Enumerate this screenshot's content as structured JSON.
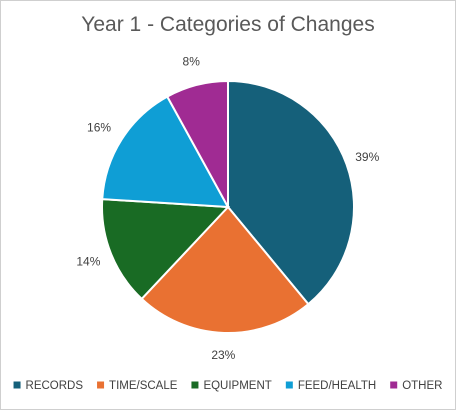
{
  "chart_data": {
    "type": "pie",
    "title": "Year 1 - Categories of Changes",
    "categories": [
      "RECORDS",
      "TIME/SCALE",
      "EQUIPMENT",
      "FEED/HEALTH",
      "OTHER"
    ],
    "values": [
      39,
      23,
      14,
      16,
      8
    ],
    "labels": [
      "39%",
      "23%",
      "14%",
      "16%",
      "8%"
    ],
    "colors": [
      "#15607a",
      "#e97132",
      "#196b24",
      "#0f9ed5",
      "#a02b93"
    ],
    "start_angle": "12 o'clock, clockwise",
    "legend_position": "bottom",
    "slice_border_color": "#ffffff"
  }
}
